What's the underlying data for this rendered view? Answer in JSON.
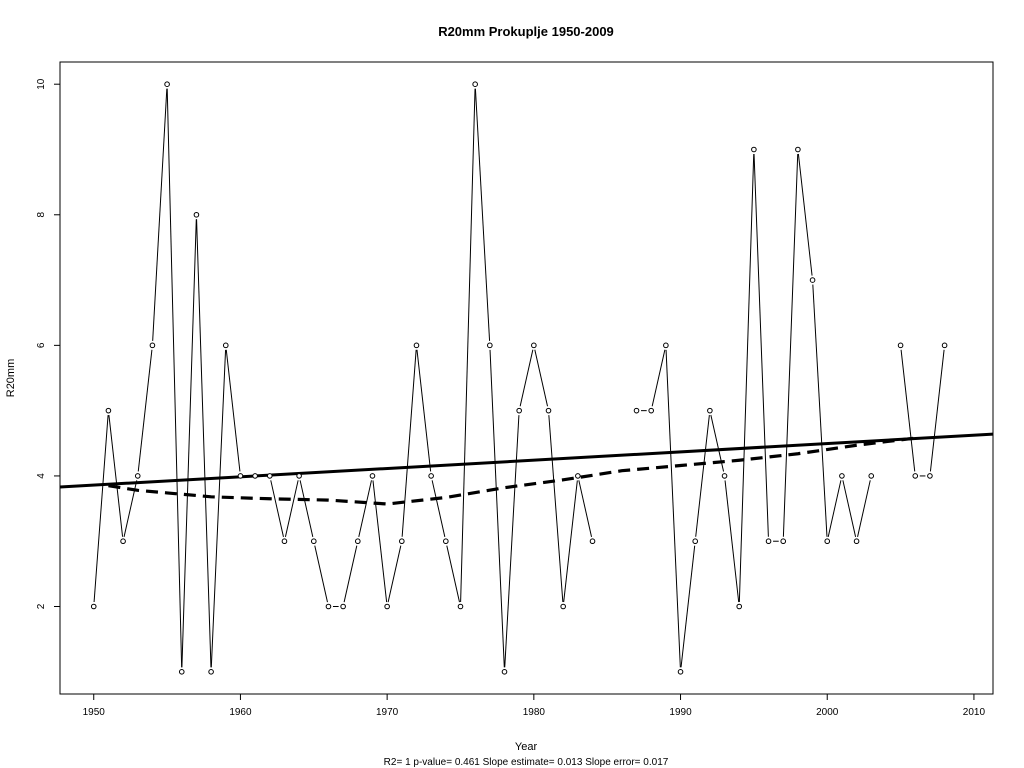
{
  "chart_data": {
    "type": "line",
    "title": "R20mm   Prokuplje 1950-2009",
    "xlabel": "Year",
    "ylabel": "R20mm",
    "footnote": "R2= 1  p-value= 0.461  Slope estimate= 0.013  Slope error= 0.017",
    "xlim": [
      1947.7,
      2011.3
    ],
    "ylim": [
      0.66,
      10.34
    ],
    "xticks": [
      1950,
      1960,
      1970,
      1980,
      1990,
      2000,
      2010
    ],
    "yticks": [
      2,
      4,
      6,
      8,
      10
    ],
    "grid": false,
    "legend": "none",
    "series": [
      {
        "role": "observed",
        "x": [
          1950,
          1951,
          1952,
          1953,
          1954,
          1955,
          1956,
          1957,
          1958,
          1959,
          1960,
          1961,
          1962,
          1963,
          1964,
          1965,
          1966,
          1967,
          1968,
          1969,
          1970,
          1971,
          1972,
          1973,
          1974,
          1975,
          1976,
          1977,
          1978,
          1979,
          1980,
          1981,
          1982,
          1983,
          1984,
          1985,
          1986,
          1987,
          1988,
          1989,
          1990,
          1991,
          1992,
          1993,
          1994,
          1995,
          1996,
          1997,
          1998,
          1999,
          2000,
          2001,
          2002,
          2003,
          2004,
          2005,
          2006,
          2007,
          2008
        ],
        "values": [
          2,
          5,
          3,
          4,
          6,
          10,
          1,
          8,
          1,
          6,
          4,
          4,
          4,
          3,
          4,
          3,
          2,
          2,
          3,
          4,
          2,
          3,
          6,
          4,
          3,
          2,
          10,
          6,
          1,
          5,
          6,
          5,
          2,
          4,
          3,
          null,
          null,
          5,
          5,
          6,
          1,
          3,
          5,
          4,
          2,
          9,
          3,
          3,
          9,
          7,
          3,
          4,
          3,
          4,
          null,
          6,
          4,
          4,
          6
        ]
      },
      {
        "role": "linear-trend",
        "x": [
          1947.7,
          2011.3
        ],
        "values": [
          3.83,
          4.64
        ]
      },
      {
        "role": "smoothed-trend",
        "x": [
          1951,
          1953,
          1955,
          1958,
          1962,
          1966,
          1970,
          1974,
          1978,
          1982,
          1986,
          1990,
          1994,
          1998,
          2002,
          2006
        ],
        "values": [
          3.85,
          3.78,
          3.74,
          3.68,
          3.65,
          3.63,
          3.57,
          3.67,
          3.82,
          3.94,
          4.08,
          4.16,
          4.24,
          4.34,
          4.47,
          4.58
        ]
      }
    ],
    "colors": {
      "line": "#000000",
      "background": "#ffffff"
    }
  }
}
